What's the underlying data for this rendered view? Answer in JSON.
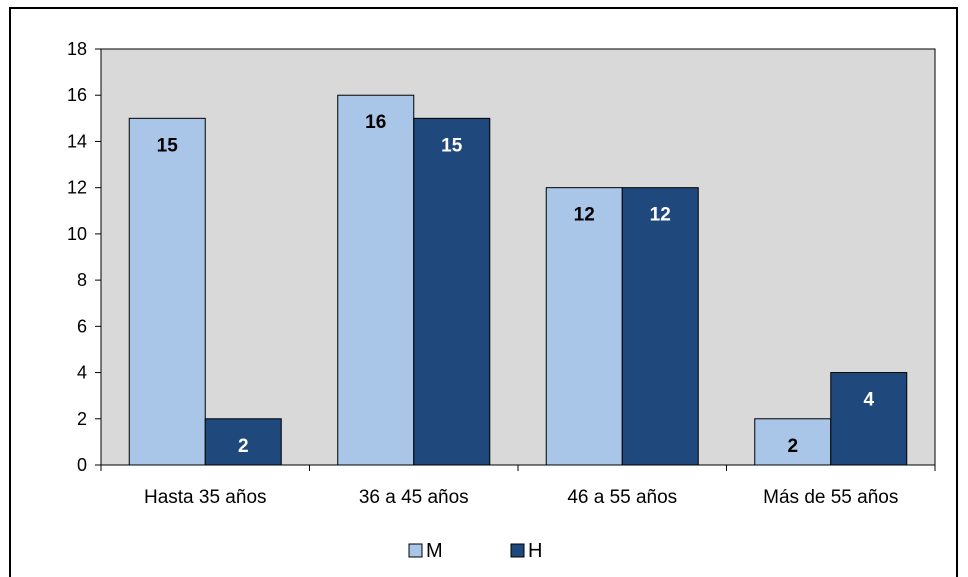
{
  "chart_data": {
    "type": "bar",
    "categories": [
      "Hasta 35 años",
      "36 a 45 años",
      "46 a 55 años",
      "Más de 55 años"
    ],
    "series": [
      {
        "name": "M",
        "values": [
          15,
          16,
          12,
          2
        ],
        "color": "#a9c6e9",
        "label_color": "#000000"
      },
      {
        "name": "H",
        "values": [
          2,
          15,
          12,
          4
        ],
        "color": "#1f497d",
        "label_color": "#ffffff"
      }
    ],
    "ylim": [
      0,
      18
    ],
    "yticks": [
      0,
      2,
      4,
      6,
      8,
      10,
      12,
      14,
      16,
      18
    ],
    "grid": false,
    "legend": "bottom",
    "plot_background": "#d9d9d9"
  }
}
